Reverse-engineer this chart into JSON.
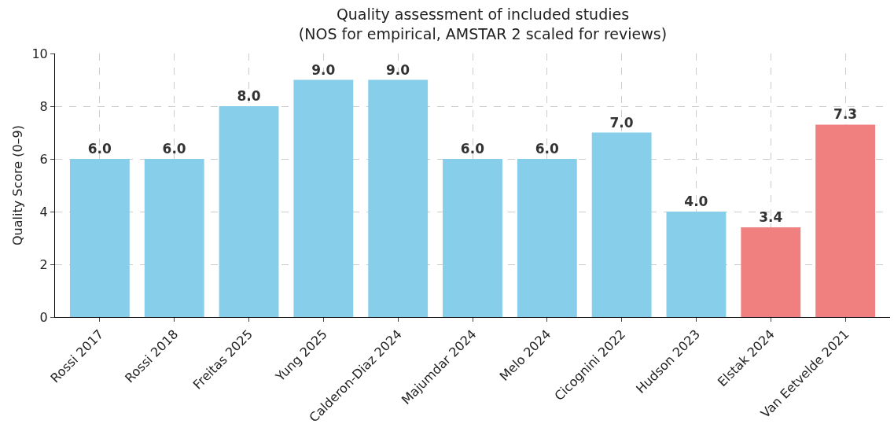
{
  "chart_data": {
    "type": "bar",
    "title": "Quality assessment of included studies\n(NOS for empirical, AMSTAR 2 scaled for reviews)",
    "ylabel": "Quality Score (0–9)",
    "categories": [
      "Rossi 2017",
      "Rossi 2018",
      "Freitas 2025",
      "Yung 2025",
      "Calderon-Diaz 2024",
      "Majumdar 2024",
      "Melo 2024",
      "Cicognini 2022",
      "Hudson 2023",
      "Elstak 2024",
      "Van Eetvelde 2021"
    ],
    "values": [
      6,
      6,
      8,
      9,
      9,
      6,
      6,
      7,
      4,
      3.4,
      7.3
    ],
    "value_labels": [
      "6.0",
      "6.0",
      "8.0",
      "9.0",
      "9.0",
      "6.0",
      "6.0",
      "7.0",
      "4.0",
      "3.4",
      "7.3"
    ],
    "colors": [
      "#87ceeb",
      "#87ceeb",
      "#87ceeb",
      "#87ceeb",
      "#87ceeb",
      "#87ceeb",
      "#87ceeb",
      "#87ceeb",
      "#87ceeb",
      "#f08080",
      "#f08080"
    ],
    "ylim": [
      0,
      10
    ],
    "yticks": [
      0,
      2,
      4,
      6,
      8,
      10
    ],
    "grid": true
  }
}
